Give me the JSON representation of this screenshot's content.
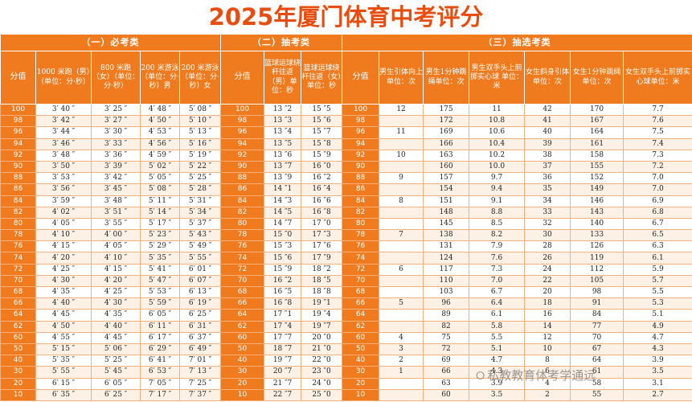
{
  "title": "2025年厦门体育中考评分",
  "sections": [
    {
      "label": "（一）必考类"
    },
    {
      "label": "（二）抽考类"
    },
    {
      "label": "（三）抽选考类"
    }
  ],
  "headers": {
    "score": "分值",
    "run_1000": "1000 米跑（男）（单位：分·秒）",
    "run_800": "800 米跑（女）（单位：分·秒）",
    "swim_m": "200 米游泳（单位：分·秒）男",
    "swim_f": "200 米游泳（单位：分·秒）女",
    "basketball_m": "篮球运球绕杆往返（男）单位：秒",
    "basketball_f": "篮球运球绕杆往返（女）单位：秒",
    "pullup_m": "男生引体向上单位：次",
    "rope_m": "男生1分钟跳绳单位：次",
    "ball_m": "男生双手头上前掷实心球 单位：米",
    "lean_f": "女生斜身引体单位：次",
    "rope_f": "女生1分钟跳绳单位：次",
    "ball_f": "女生双手头上前掷实心球单位：米"
  },
  "rows": [
    [
      "100",
      "3′ 40 ″",
      "3′ 25 ″",
      "4′ 48 ″",
      "5′ 08 ″",
      "100",
      "13 ″2",
      "15 ″5",
      "100",
      "12",
      "175",
      "11",
      "42",
      "170",
      "7.7"
    ],
    [
      "98",
      "3′ 42 ″",
      "3′ 27 ″",
      "4′ 50 ″",
      "5′ 10 ″",
      "98",
      "13 ″3",
      "15 ″6",
      "98",
      "",
      "172",
      "10.8",
      "41",
      "167",
      "7.6"
    ],
    [
      "96",
      "3′ 44 ″",
      "3′ 30 ″",
      "4′ 53 ″",
      "5′ 13 ″",
      "96",
      "13 ″4",
      "15 ″7",
      "96",
      "11",
      "169",
      "10.6",
      "40",
      "164",
      "7.5"
    ],
    [
      "94",
      "3′ 46 ″",
      "3′ 33 ″",
      "4′ 56 ″",
      "5′ 16 ″",
      "94",
      "13 ″5",
      "15 ″8",
      "94",
      "",
      "166",
      "10.4",
      "39",
      "161",
      "7.4"
    ],
    [
      "92",
      "3′ 48 ″",
      "3′ 36 ″",
      "4′ 59 ″",
      "5′ 19 ″",
      "92",
      "13 ″6",
      "15 ″9",
      "92",
      "10",
      "163",
      "10.2",
      "38",
      "158",
      "7.3"
    ],
    [
      "90",
      "3′ 50 ″",
      "3′ 39 ″",
      "5′ 02 ″",
      "5′ 22 ″",
      "90",
      "13 ″7",
      "16 ″0",
      "90",
      "",
      "160",
      "10.0",
      "37",
      "155",
      "7.2"
    ],
    [
      "88",
      "3′ 53 ″",
      "3′ 42 ″",
      "5′ 05 ″",
      "5′ 25 ″",
      "88",
      "13 ″9",
      "16 ″2",
      "88",
      "9",
      "157",
      "9.7",
      "36",
      "152",
      "7.0"
    ],
    [
      "86",
      "3′ 56 ″",
      "3′ 45 ″",
      "5′ 08 ″",
      "5′ 28 ″",
      "86",
      "14 ″1",
      "16 ″4",
      "86",
      "",
      "154",
      "9.4",
      "35",
      "149",
      "7.0"
    ],
    [
      "84",
      "3′ 59 ″",
      "3′ 48 ″",
      "5′ 11 ″",
      "5′ 31 ″",
      "84",
      "14 ″3",
      "16 ″6",
      "84",
      "8",
      "151",
      "9.1",
      "34",
      "146",
      "6.9"
    ],
    [
      "82",
      "4′ 02 ″",
      "3′ 51 ″",
      "5′ 14 ″",
      "5′ 34 ″",
      "82",
      "14 ″5",
      "16 ″8",
      "82",
      "",
      "148",
      "8.8",
      "33",
      "143",
      "6.8"
    ],
    [
      "80",
      "4′ 05 ″",
      "3′ 55 ″",
      "5′ 17 ″",
      "5′ 37 ″",
      "80",
      "14 ″7",
      "17 ″0",
      "80",
      "",
      "145",
      "8.5",
      "32",
      "140",
      "6.7"
    ],
    [
      "78",
      "4′ 10 ″",
      "4′ 00 ″",
      "5′ 23 ″",
      "5′ 43 ″",
      "78",
      "15 ″0",
      "17 ″3",
      "78",
      "7",
      "138",
      "8.2",
      "30",
      "133",
      "6.5"
    ],
    [
      "76",
      "4′ 15 ″",
      "4′ 05 ″",
      "5′ 29 ″",
      "5′ 49 ″",
      "76",
      "15 ″3",
      "17 ″6",
      "76",
      "",
      "131",
      "7.9",
      "28",
      "126",
      "6.3"
    ],
    [
      "74",
      "4′ 20 ″",
      "4′ 10 ″",
      "5′ 35 ″",
      "5′ 55 ″",
      "74",
      "15 ″6",
      "17 ″9",
      "74",
      "",
      "124",
      "7.6",
      "26",
      "119",
      "6.1"
    ],
    [
      "72",
      "4′ 25 ″",
      "4′ 15 ″",
      "5′ 41 ″",
      "6′ 01 ″",
      "72",
      "15 ″9",
      "18 ″2",
      "72",
      "6",
      "117",
      "7.3",
      "24",
      "112",
      "5.9"
    ],
    [
      "70",
      "4′ 30 ″",
      "4′ 20 ″",
      "5′ 47 ″",
      "6′ 07 ″",
      "70",
      "16 ″2",
      "18 ″5",
      "70",
      "",
      "110",
      "7.0",
      "22",
      "105",
      "5.7"
    ],
    [
      "68",
      "4′ 35 ″",
      "4′ 25 ″",
      "5′ 53 ″",
      "6′ 13 ″",
      "68",
      "16 ″5",
      "18 ″8",
      "68",
      "",
      "103",
      "6.7",
      "20",
      "98",
      "5.5"
    ],
    [
      "66",
      "4′ 40 ″",
      "4′ 30 ″",
      "5′ 59 ″",
      "6′ 19 ″",
      "66",
      "16 ″8",
      "19 ″1",
      "66",
      "5",
      "96",
      "6.4",
      "18",
      "91",
      "5.3"
    ],
    [
      "64",
      "4′ 45 ″",
      "4′ 35 ″",
      "6′ 05 ″",
      "6′ 25 ″",
      "64",
      "17 ″1",
      "19 ″4",
      "64",
      "",
      "89",
      "6.1",
      "16",
      "84",
      "5.1"
    ],
    [
      "62",
      "4′ 50 ″",
      "4′ 40 ″",
      "6′ 11 ″",
      "6′ 31 ″",
      "62",
      "17 ″4",
      "19 ″7",
      "62",
      "",
      "82",
      "5.8",
      "14",
      "77",
      "4.9"
    ],
    [
      "60",
      "4′ 55 ″",
      "4′ 45 ″",
      "6′ 17 ″",
      "6′ 37 ″",
      "60",
      "17 ″7",
      "20 ″0",
      "60",
      "4",
      "75",
      "5.5",
      "12",
      "70",
      "4.7"
    ],
    [
      "50",
      "5′ 15 ″",
      "5′ 06 ″",
      "6′ 29 ″",
      "6′ 49 ″",
      "50",
      "18 ″7",
      "21 ″0",
      "50",
      "3",
      "72",
      "5.1",
      "10",
      "67",
      "4.3"
    ],
    [
      "40",
      "5′ 35 ″",
      "5′ 25 ″",
      "6′ 41 ″",
      "7′ 01 ″",
      "40",
      "19 ″7",
      "22 ″0",
      "40",
      "2",
      "69",
      "4.7",
      "8",
      "64",
      "3.9"
    ],
    [
      "30",
      "5′ 55 ″",
      "5′ 45 ″",
      "6′ 53 ″",
      "7′ 13 ″",
      "30",
      "20 ″7",
      "23 ″0",
      "30",
      "1",
      "66",
      "4.3",
      "6",
      "61",
      "3.5"
    ],
    [
      "20",
      "6′ 15 ″",
      "6′ 05 ″",
      "7′ 05 ″",
      "7′ 25 ″",
      "20",
      "21 ″7",
      "24 ″0",
      "20",
      "",
      "63",
      "3.9",
      "4",
      "58",
      "3.1"
    ],
    [
      "10",
      "6′ 35 ″",
      "6′ 25 ″",
      "7′ 17 ″",
      "7′ 37 ″",
      "10",
      "22 ″7",
      "25 ″0",
      "10",
      "",
      "60",
      "3.5",
      "2",
      "55",
      "2.7"
    ]
  ],
  "watermark": "私教教育体考学通远",
  "colors": {
    "title": "#e84d10",
    "header_bg": "#f07b1f",
    "stripe": "#fdf1e6"
  }
}
